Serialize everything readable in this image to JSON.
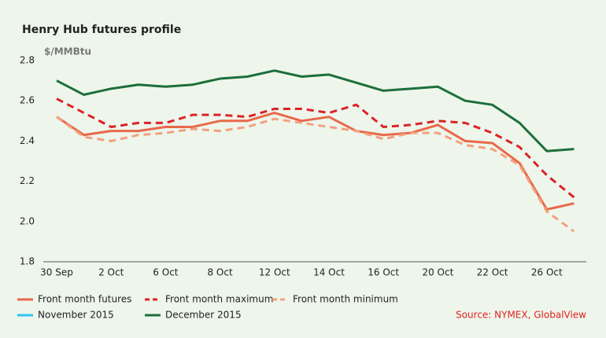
{
  "chart_data": {
    "type": "line",
    "title": "Henry Hub futures profile",
    "y_label": "$/MMBtu",
    "source": "Source: NYMEX, GlobalView",
    "categories": [
      "30 Sep",
      null,
      "2 Oct",
      null,
      "6 Oct",
      null,
      "8 Oct",
      null,
      "12 Oct",
      null,
      "14 Oct",
      null,
      "16 Oct",
      null,
      "20 Oct",
      null,
      "22 Oct",
      null,
      "26 Oct",
      null
    ],
    "series": [
      {
        "name": "Front month futures",
        "color": "#e8694a",
        "dash": "solid",
        "values": [
          2.52,
          2.43,
          2.45,
          2.45,
          2.47,
          2.47,
          2.5,
          2.5,
          2.54,
          2.5,
          2.52,
          2.45,
          2.43,
          2.44,
          2.48,
          2.4,
          2.39,
          2.29,
          2.06,
          2.09
        ]
      },
      {
        "name": "Front month maximum",
        "color": "#dc2226",
        "dash": "dashed",
        "values": [
          2.61,
          2.54,
          2.47,
          2.49,
          2.49,
          2.53,
          2.53,
          2.52,
          2.56,
          2.56,
          2.54,
          2.58,
          2.47,
          2.48,
          2.5,
          2.49,
          2.44,
          2.37,
          2.23,
          2.12
        ]
      },
      {
        "name": "Front month minimum",
        "color": "#f3a07e",
        "dash": "dashed",
        "values": [
          2.52,
          2.42,
          2.4,
          2.43,
          2.44,
          2.46,
          2.45,
          2.47,
          2.51,
          2.49,
          2.47,
          2.45,
          2.41,
          2.44,
          2.44,
          2.38,
          2.36,
          2.28,
          2.05,
          1.95
        ]
      },
      {
        "name": "November 2015",
        "color": "#2fc4f0",
        "dash": "solid",
        "values": [
          null,
          null,
          null,
          null,
          null,
          null,
          null,
          null,
          null,
          null,
          null,
          null,
          null,
          null,
          null,
          null,
          null,
          null,
          null,
          null
        ]
      },
      {
        "name": "December 2015",
        "color": "#1d6e3a",
        "dash": "solid",
        "values": [
          2.7,
          2.63,
          2.66,
          2.68,
          2.67,
          2.68,
          2.71,
          2.72,
          2.75,
          2.72,
          2.73,
          2.69,
          2.65,
          2.66,
          2.67,
          2.6,
          2.58,
          2.49,
          2.35,
          2.36
        ]
      }
    ],
    "ylim": [
      1.8,
      2.8
    ],
    "yticks": [
      1.8,
      {
        "value": 2,
        "label": "2.0"
      },
      2.2,
      2.4,
      2.6,
      2.8
    ],
    "grid": false
  }
}
